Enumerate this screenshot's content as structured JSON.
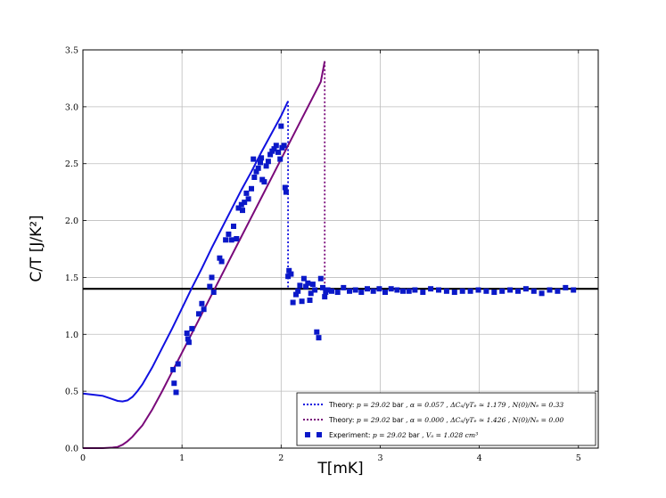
{
  "chart_data": {
    "type": "line",
    "title": "",
    "xlabel": "T[mK]",
    "ylabel": "C/T [J/K²]",
    "xlim": [
      0,
      5.2
    ],
    "ylim": [
      0,
      3.5
    ],
    "grid": true,
    "legend_position": "bottom-right",
    "x_ticks": [
      0,
      1,
      2,
      3,
      4,
      5
    ],
    "x_tick_labels": [
      "0",
      "1",
      "2",
      "3",
      "4",
      "5"
    ],
    "y_ticks": [
      0,
      0.5,
      1.0,
      1.5,
      2.0,
      2.5,
      3.0,
      3.5
    ],
    "y_tick_labels": [
      "0.0",
      "0.5",
      "1.0",
      "1.5",
      "2.0",
      "2.5",
      "3.0",
      "3.5"
    ],
    "normal_state_level": 1.4,
    "colors": {
      "theory1": "#1010e0",
      "theory2": "#7a0a7a",
      "experiment": "#0a18c8",
      "normal_line": "#000000"
    },
    "series": [
      {
        "name": "Theory: p = 29.02 bar , α = 0.057 , ΔCₐ/γTₑ ≃ 1.179 , N(0)/Nₑ = 0.33",
        "color": "#1010e0",
        "x": [
          0,
          0.1,
          0.2,
          0.3,
          0.35,
          0.4,
          0.45,
          0.5,
          0.55,
          0.6,
          0.7,
          0.8,
          0.9,
          1.0,
          1.1,
          1.2,
          1.3,
          1.4,
          1.5,
          1.6,
          1.7,
          1.8,
          1.9,
          2.0,
          2.07
        ],
        "y": [
          0.48,
          0.47,
          0.46,
          0.43,
          0.415,
          0.41,
          0.42,
          0.45,
          0.5,
          0.56,
          0.71,
          0.88,
          1.05,
          1.23,
          1.41,
          1.58,
          1.76,
          1.93,
          2.1,
          2.27,
          2.43,
          2.6,
          2.76,
          2.92,
          3.05
        ],
        "drop_x": 2.07,
        "drop_to": 1.4
      },
      {
        "name": "Theory: p = 29.02 bar , α = 0.000 , ΔCₐ/γTₑ ≃ 1.426 , N(0)/Nₑ = 0.00",
        "color": "#7a0a7a",
        "x": [
          0,
          0.2,
          0.3,
          0.35,
          0.4,
          0.45,
          0.5,
          0.55,
          0.6,
          0.7,
          0.8,
          0.9,
          1.0,
          1.2,
          1.4,
          1.6,
          1.8,
          2.0,
          2.2,
          2.4,
          2.44
        ],
        "y": [
          0,
          0,
          0.005,
          0.01,
          0.03,
          0.06,
          0.1,
          0.15,
          0.2,
          0.34,
          0.5,
          0.67,
          0.84,
          1.18,
          1.52,
          1.86,
          2.2,
          2.54,
          2.88,
          3.22,
          3.4
        ],
        "drop_x": 2.44,
        "drop_to": 1.4
      }
    ],
    "experiment": {
      "name": "Experiment: p = 29.02 bar , Vₐ = 1.028 cm³",
      "color": "#0a18c8",
      "x": [
        0.91,
        0.92,
        0.94,
        0.96,
        1.05,
        1.06,
        1.07,
        1.1,
        1.17,
        1.2,
        1.22,
        1.28,
        1.3,
        1.32,
        1.38,
        1.4,
        1.44,
        1.47,
        1.5,
        1.52,
        1.55,
        1.57,
        1.6,
        1.61,
        1.63,
        1.65,
        1.67,
        1.7,
        1.72,
        1.73,
        1.75,
        1.77,
        1.79,
        1.8,
        1.81,
        1.83,
        1.85,
        1.87,
        1.89,
        1.91,
        1.93,
        1.95,
        1.97,
        1.99,
        2.0,
        2.01,
        2.03,
        2.04,
        2.05,
        2.07,
        2.08,
        2.1,
        2.12,
        2.15,
        2.17,
        2.19,
        2.21,
        2.23,
        2.25,
        2.27,
        2.29,
        2.3,
        2.32,
        2.34,
        2.36,
        2.38,
        2.4,
        2.42,
        2.44,
        2.45,
        2.47,
        2.51,
        2.57,
        2.63,
        2.69,
        2.75,
        2.81,
        2.87,
        2.93,
        2.99,
        3.05,
        3.11,
        3.17,
        3.23,
        3.29,
        3.35,
        3.43,
        3.51,
        3.59,
        3.67,
        3.75,
        3.83,
        3.91,
        3.99,
        4.07,
        4.15,
        4.23,
        4.31,
        4.39,
        4.47,
        4.55,
        4.63,
        4.71,
        4.79,
        4.87,
        4.95
      ],
      "y": [
        0.69,
        0.57,
        0.49,
        0.74,
        1.01,
        0.96,
        0.93,
        1.05,
        1.18,
        1.27,
        1.22,
        1.42,
        1.5,
        1.37,
        1.67,
        1.64,
        1.83,
        1.88,
        1.83,
        1.95,
        1.84,
        2.11,
        2.14,
        2.09,
        2.16,
        2.24,
        2.19,
        2.28,
        2.54,
        2.38,
        2.43,
        2.46,
        2.51,
        2.55,
        2.36,
        2.34,
        2.48,
        2.52,
        2.58,
        2.61,
        2.63,
        2.66,
        2.6,
        2.54,
        2.83,
        2.64,
        2.66,
        2.29,
        2.25,
        1.51,
        1.56,
        1.53,
        1.28,
        1.35,
        1.38,
        1.43,
        1.29,
        1.49,
        1.42,
        1.45,
        1.3,
        1.36,
        1.44,
        1.39,
        1.02,
        0.97,
        1.49,
        1.41,
        1.33,
        1.37,
        1.39,
        1.38,
        1.37,
        1.41,
        1.38,
        1.39,
        1.37,
        1.4,
        1.38,
        1.4,
        1.37,
        1.4,
        1.39,
        1.38,
        1.38,
        1.39,
        1.37,
        1.4,
        1.39,
        1.38,
        1.37,
        1.38,
        1.38,
        1.39,
        1.38,
        1.37,
        1.38,
        1.39,
        1.38,
        1.4,
        1.38,
        1.36,
        1.39,
        1.38,
        1.41,
        1.39
      ]
    }
  },
  "legend": {
    "entry1": {
      "prefix": "Theory: ",
      "p": "p = 29.02",
      "unit": "bar",
      "rest": ", α = 0.057 , ΔCₐ/γTₑ ≃ 1.179 , N(0)/Nₑ = 0.33"
    },
    "entry2": {
      "prefix": "Theory: ",
      "p": "p = 29.02",
      "unit": "bar",
      "rest": ", α = 0.000 , ΔCₐ/γTₑ ≃ 1.426 , N(0)/Nₑ = 0.00"
    },
    "entry3": {
      "prefix": "Experiment: ",
      "p": "p = 29.02",
      "unit": "bar",
      "rest": ", Vₐ = 1.028 cm³"
    }
  }
}
